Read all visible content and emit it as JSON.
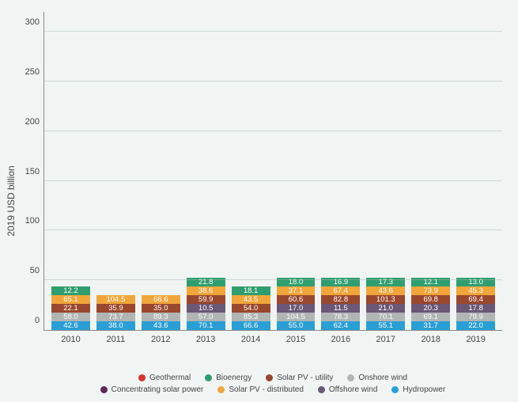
{
  "chart": {
    "type": "stacked-bar",
    "background_color": "#f0f5f4",
    "grid_color": "#a8b8b4",
    "ylabel": "2019 USD billion",
    "label_fontsize": 12,
    "value_fontsize": 9.5,
    "ylim": [
      0,
      320
    ],
    "yticks": [
      0,
      50,
      100,
      150,
      200,
      250,
      300
    ],
    "categories": [
      "2010",
      "2011",
      "2012",
      "2013",
      "2014",
      "2015",
      "2016",
      "2017",
      "2018",
      "2019"
    ],
    "series": [
      {
        "key": "hydropower",
        "label": "Hydropower",
        "color": "#2a9fd6"
      },
      {
        "key": "onshore_wind",
        "label": "Onshore wind",
        "color": "#b1b5b3"
      },
      {
        "key": "offshore_wind",
        "label": "Offshore wind",
        "color": "#6a5876"
      },
      {
        "key": "solar_pv_utility",
        "label": "Solar PV - utility",
        "color": "#99472d"
      },
      {
        "key": "solar_pv_distributed",
        "label": "Solar PV - distributed",
        "color": "#f0a63a"
      },
      {
        "key": "bioenergy",
        "label": "Bioenergy",
        "color": "#2f9e6f"
      },
      {
        "key": "csp",
        "label": "Concentrating solar power",
        "color": "#5f2a5a"
      },
      {
        "key": "geothermal",
        "label": "Geothermal",
        "color": "#d6342c"
      }
    ],
    "legend_order_row1": [
      "geothermal",
      "bioenergy",
      "solar_pv_utility",
      "onshore_wind"
    ],
    "legend_order_row2": [
      "csp",
      "solar_pv_distributed",
      "offshore_wind",
      "hydropower"
    ],
    "data": {
      "2010": {
        "hydropower": 42.6,
        "onshore_wind": 58.0,
        "offshore_wind": 4.0,
        "solar_pv_utility": 22.1,
        "solar_pv_distributed": 65.1,
        "bioenergy": 12.2,
        "csp": 4.0,
        "geothermal": 2.5
      },
      "2011": {
        "hydropower": 38.0,
        "onshore_wind": 73.7,
        "offshore_wind": 3.0,
        "solar_pv_utility": 35.9,
        "solar_pv_distributed": 104.5,
        "bioenergy": 8.0,
        "csp": 5.0,
        "geothermal": 2.5
      },
      "2012": {
        "hydropower": 43.6,
        "onshore_wind": 89.3,
        "offshore_wind": 5.0,
        "solar_pv_utility": 35.0,
        "solar_pv_distributed": 66.6,
        "bioenergy": 8.0,
        "csp": 7.0,
        "geothermal": 2.5
      },
      "2013": {
        "hydropower": 70.1,
        "onshore_wind": 57.0,
        "offshore_wind": 10.5,
        "solar_pv_utility": 59.9,
        "solar_pv_distributed": 38.6,
        "bioenergy": 21.8,
        "csp": 7.0,
        "geothermal": 2.5
      },
      "2014": {
        "hydropower": 66.6,
        "onshore_wind": 85.3,
        "offshore_wind": 5.0,
        "solar_pv_utility": 54.0,
        "solar_pv_distributed": 43.5,
        "bioenergy": 18.1,
        "csp": 4.0,
        "geothermal": 2.5
      },
      "2015": {
        "hydropower": 55.0,
        "onshore_wind": 104.5,
        "offshore_wind": 17.0,
        "solar_pv_utility": 60.6,
        "solar_pv_distributed": 37.1,
        "bioenergy": 18.0,
        "csp": 1.0,
        "geothermal": 2.5
      },
      "2016": {
        "hydropower": 62.4,
        "onshore_wind": 78.3,
        "offshore_wind": 11.5,
        "solar_pv_utility": 82.8,
        "solar_pv_distributed": 67.4,
        "bioenergy": 16.9,
        "csp": 1.0,
        "geothermal": 3.0
      },
      "2017": {
        "hydropower": 55.1,
        "onshore_wind": 70.1,
        "offshore_wind": 21.0,
        "solar_pv_utility": 101.3,
        "solar_pv_distributed": 43.6,
        "bioenergy": 17.3,
        "csp": 1.0,
        "geothermal": 3.0
      },
      "2018": {
        "hydropower": 31.7,
        "onshore_wind": 69.1,
        "offshore_wind": 20.3,
        "solar_pv_utility": 69.8,
        "solar_pv_distributed": 73.9,
        "bioenergy": 12.1,
        "csp": 2.0,
        "geothermal": 3.0
      },
      "2019": {
        "hydropower": 22.0,
        "onshore_wind": 79.9,
        "offshore_wind": 17.8,
        "solar_pv_utility": 69.4,
        "solar_pv_distributed": 45.3,
        "bioenergy": 13.0,
        "csp": 2.0,
        "geothermal": 3.0
      }
    },
    "visible_labels": {
      "2010": [
        "hydropower",
        "onshore_wind",
        "solar_pv_utility",
        "solar_pv_distributed",
        "bioenergy"
      ],
      "2011": [
        "hydropower",
        "onshore_wind",
        "solar_pv_utility",
        "solar_pv_distributed"
      ],
      "2012": [
        "hydropower",
        "onshore_wind",
        "solar_pv_utility",
        "solar_pv_distributed"
      ],
      "2013": [
        "hydropower",
        "onshore_wind",
        "offshore_wind",
        "solar_pv_utility",
        "solar_pv_distributed",
        "bioenergy"
      ],
      "2014": [
        "hydropower",
        "onshore_wind",
        "solar_pv_utility",
        "solar_pv_distributed",
        "bioenergy"
      ],
      "2015": [
        "hydropower",
        "onshore_wind",
        "offshore_wind",
        "solar_pv_utility",
        "solar_pv_distributed",
        "bioenergy"
      ],
      "2016": [
        "hydropower",
        "onshore_wind",
        "offshore_wind",
        "solar_pv_utility",
        "solar_pv_distributed",
        "bioenergy"
      ],
      "2017": [
        "hydropower",
        "onshore_wind",
        "offshore_wind",
        "solar_pv_utility",
        "solar_pv_distributed",
        "bioenergy"
      ],
      "2018": [
        "hydropower",
        "onshore_wind",
        "offshore_wind",
        "solar_pv_utility",
        "solar_pv_distributed",
        "bioenergy"
      ],
      "2019": [
        "hydropower",
        "onshore_wind",
        "offshore_wind",
        "solar_pv_utility",
        "solar_pv_distributed",
        "bioenergy"
      ]
    }
  }
}
